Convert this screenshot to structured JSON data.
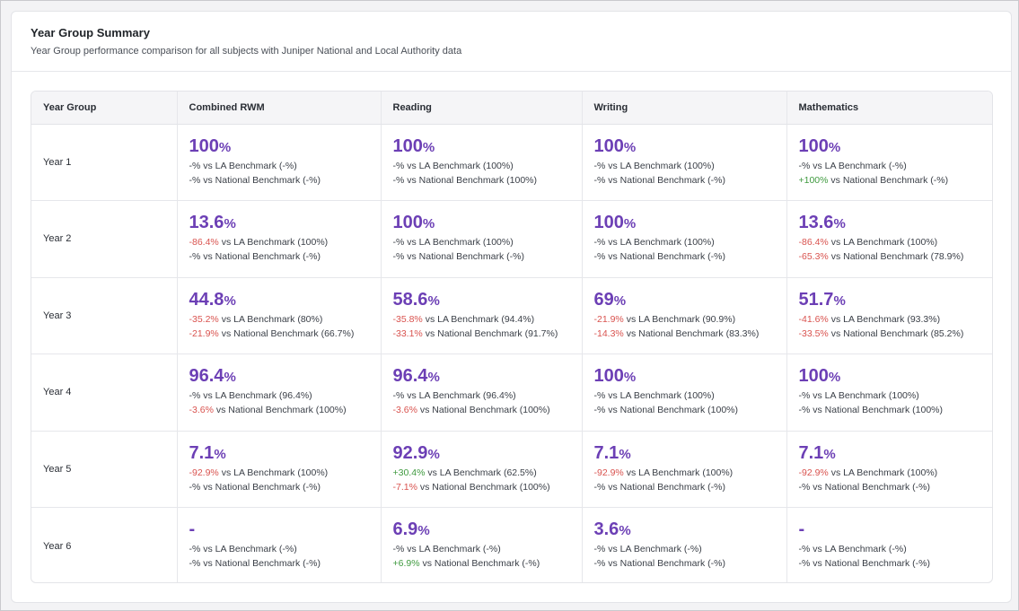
{
  "card": {
    "title": "Year Group Summary",
    "subtitle": "Year Group performance comparison for all subjects with Juniper National and Local Authority data"
  },
  "columns": [
    "Year Group",
    "Combined RWM",
    "Reading",
    "Writing",
    "Mathematics"
  ],
  "colors": {
    "value": "#6c3fb5",
    "negative": "#d9534f",
    "positive": "#3f9a3f"
  },
  "rows": [
    {
      "year": "Year 1",
      "cells": [
        {
          "value": "100",
          "unit": "%",
          "la_diff": "-%",
          "la_tone": "neutral",
          "la_text": " vs LA Benchmark (-%)",
          "nat_diff": "-%",
          "nat_tone": "neutral",
          "nat_text": " vs National Benchmark (-%)"
        },
        {
          "value": "100",
          "unit": "%",
          "la_diff": "-%",
          "la_tone": "neutral",
          "la_text": " vs LA Benchmark (100%)",
          "nat_diff": "-%",
          "nat_tone": "neutral",
          "nat_text": " vs National Benchmark (100%)"
        },
        {
          "value": "100",
          "unit": "%",
          "la_diff": "-%",
          "la_tone": "neutral",
          "la_text": " vs LA Benchmark (100%)",
          "nat_diff": "-%",
          "nat_tone": "neutral",
          "nat_text": " vs National Benchmark (-%)"
        },
        {
          "value": "100",
          "unit": "%",
          "la_diff": "-%",
          "la_tone": "neutral",
          "la_text": " vs LA Benchmark (-%)",
          "nat_diff": "+100%",
          "nat_tone": "pos",
          "nat_text": " vs National Benchmark (-%)"
        }
      ]
    },
    {
      "year": "Year 2",
      "cells": [
        {
          "value": "13.6",
          "unit": "%",
          "la_diff": "-86.4%",
          "la_tone": "neg",
          "la_text": " vs LA Benchmark (100%)",
          "nat_diff": "-%",
          "nat_tone": "neutral",
          "nat_text": " vs National Benchmark (-%)"
        },
        {
          "value": "100",
          "unit": "%",
          "la_diff": "-%",
          "la_tone": "neutral",
          "la_text": " vs LA Benchmark (100%)",
          "nat_diff": "-%",
          "nat_tone": "neutral",
          "nat_text": " vs National Benchmark (-%)"
        },
        {
          "value": "100",
          "unit": "%",
          "la_diff": "-%",
          "la_tone": "neutral",
          "la_text": " vs LA Benchmark (100%)",
          "nat_diff": "-%",
          "nat_tone": "neutral",
          "nat_text": " vs National Benchmark (-%)"
        },
        {
          "value": "13.6",
          "unit": "%",
          "la_diff": "-86.4%",
          "la_tone": "neg",
          "la_text": " vs LA Benchmark (100%)",
          "nat_diff": "-65.3%",
          "nat_tone": "neg",
          "nat_text": " vs National Benchmark (78.9%)"
        }
      ]
    },
    {
      "year": "Year 3",
      "cells": [
        {
          "value": "44.8",
          "unit": "%",
          "la_diff": "-35.2%",
          "la_tone": "neg",
          "la_text": " vs LA Benchmark (80%)",
          "nat_diff": "-21.9%",
          "nat_tone": "neg",
          "nat_text": " vs National Benchmark (66.7%)"
        },
        {
          "value": "58.6",
          "unit": "%",
          "la_diff": "-35.8%",
          "la_tone": "neg",
          "la_text": " vs LA Benchmark (94.4%)",
          "nat_diff": "-33.1%",
          "nat_tone": "neg",
          "nat_text": " vs National Benchmark (91.7%)"
        },
        {
          "value": "69",
          "unit": "%",
          "la_diff": "-21.9%",
          "la_tone": "neg",
          "la_text": " vs LA Benchmark (90.9%)",
          "nat_diff": "-14.3%",
          "nat_tone": "neg",
          "nat_text": " vs National Benchmark (83.3%)"
        },
        {
          "value": "51.7",
          "unit": "%",
          "la_diff": "-41.6%",
          "la_tone": "neg",
          "la_text": " vs LA Benchmark (93.3%)",
          "nat_diff": "-33.5%",
          "nat_tone": "neg",
          "nat_text": " vs National Benchmark (85.2%)"
        }
      ]
    },
    {
      "year": "Year 4",
      "cells": [
        {
          "value": "96.4",
          "unit": "%",
          "la_diff": "-%",
          "la_tone": "neutral",
          "la_text": " vs LA Benchmark (96.4%)",
          "nat_diff": "-3.6%",
          "nat_tone": "neg",
          "nat_text": " vs National Benchmark (100%)"
        },
        {
          "value": "96.4",
          "unit": "%",
          "la_diff": "-%",
          "la_tone": "neutral",
          "la_text": " vs LA Benchmark (96.4%)",
          "nat_diff": "-3.6%",
          "nat_tone": "neg",
          "nat_text": " vs National Benchmark (100%)"
        },
        {
          "value": "100",
          "unit": "%",
          "la_diff": "-%",
          "la_tone": "neutral",
          "la_text": " vs LA Benchmark (100%)",
          "nat_diff": "-%",
          "nat_tone": "neutral",
          "nat_text": " vs National Benchmark (100%)"
        },
        {
          "value": "100",
          "unit": "%",
          "la_diff": "-%",
          "la_tone": "neutral",
          "la_text": " vs LA Benchmark (100%)",
          "nat_diff": "-%",
          "nat_tone": "neutral",
          "nat_text": " vs National Benchmark (100%)"
        }
      ]
    },
    {
      "year": "Year 5",
      "cells": [
        {
          "value": "7.1",
          "unit": "%",
          "la_diff": "-92.9%",
          "la_tone": "neg",
          "la_text": " vs LA Benchmark (100%)",
          "nat_diff": "-%",
          "nat_tone": "neutral",
          "nat_text": " vs National Benchmark (-%)"
        },
        {
          "value": "92.9",
          "unit": "%",
          "la_diff": "+30.4%",
          "la_tone": "pos",
          "la_text": " vs LA Benchmark (62.5%)",
          "nat_diff": "-7.1%",
          "nat_tone": "neg",
          "nat_text": " vs National Benchmark (100%)"
        },
        {
          "value": "7.1",
          "unit": "%",
          "la_diff": "-92.9%",
          "la_tone": "neg",
          "la_text": " vs LA Benchmark (100%)",
          "nat_diff": "-%",
          "nat_tone": "neutral",
          "nat_text": " vs National Benchmark (-%)"
        },
        {
          "value": "7.1",
          "unit": "%",
          "la_diff": "-92.9%",
          "la_tone": "neg",
          "la_text": " vs LA Benchmark (100%)",
          "nat_diff": "-%",
          "nat_tone": "neutral",
          "nat_text": " vs National Benchmark (-%)"
        }
      ]
    },
    {
      "year": "Year 6",
      "cells": [
        {
          "value": "-",
          "unit": "",
          "la_diff": "-%",
          "la_tone": "neutral",
          "la_text": " vs LA Benchmark (-%)",
          "nat_diff": "-%",
          "nat_tone": "neutral",
          "nat_text": " vs National Benchmark (-%)"
        },
        {
          "value": "6.9",
          "unit": "%",
          "la_diff": "-%",
          "la_tone": "neutral",
          "la_text": " vs LA Benchmark (-%)",
          "nat_diff": "+6.9%",
          "nat_tone": "pos",
          "nat_text": " vs National Benchmark (-%)"
        },
        {
          "value": "3.6",
          "unit": "%",
          "la_diff": "-%",
          "la_tone": "neutral",
          "la_text": " vs LA Benchmark (-%)",
          "nat_diff": "-%",
          "nat_tone": "neutral",
          "nat_text": " vs National Benchmark (-%)"
        },
        {
          "value": "-",
          "unit": "",
          "la_diff": "-%",
          "la_tone": "neutral",
          "la_text": " vs LA Benchmark (-%)",
          "nat_diff": "-%",
          "nat_tone": "neutral",
          "nat_text": " vs National Benchmark (-%)"
        }
      ]
    }
  ]
}
